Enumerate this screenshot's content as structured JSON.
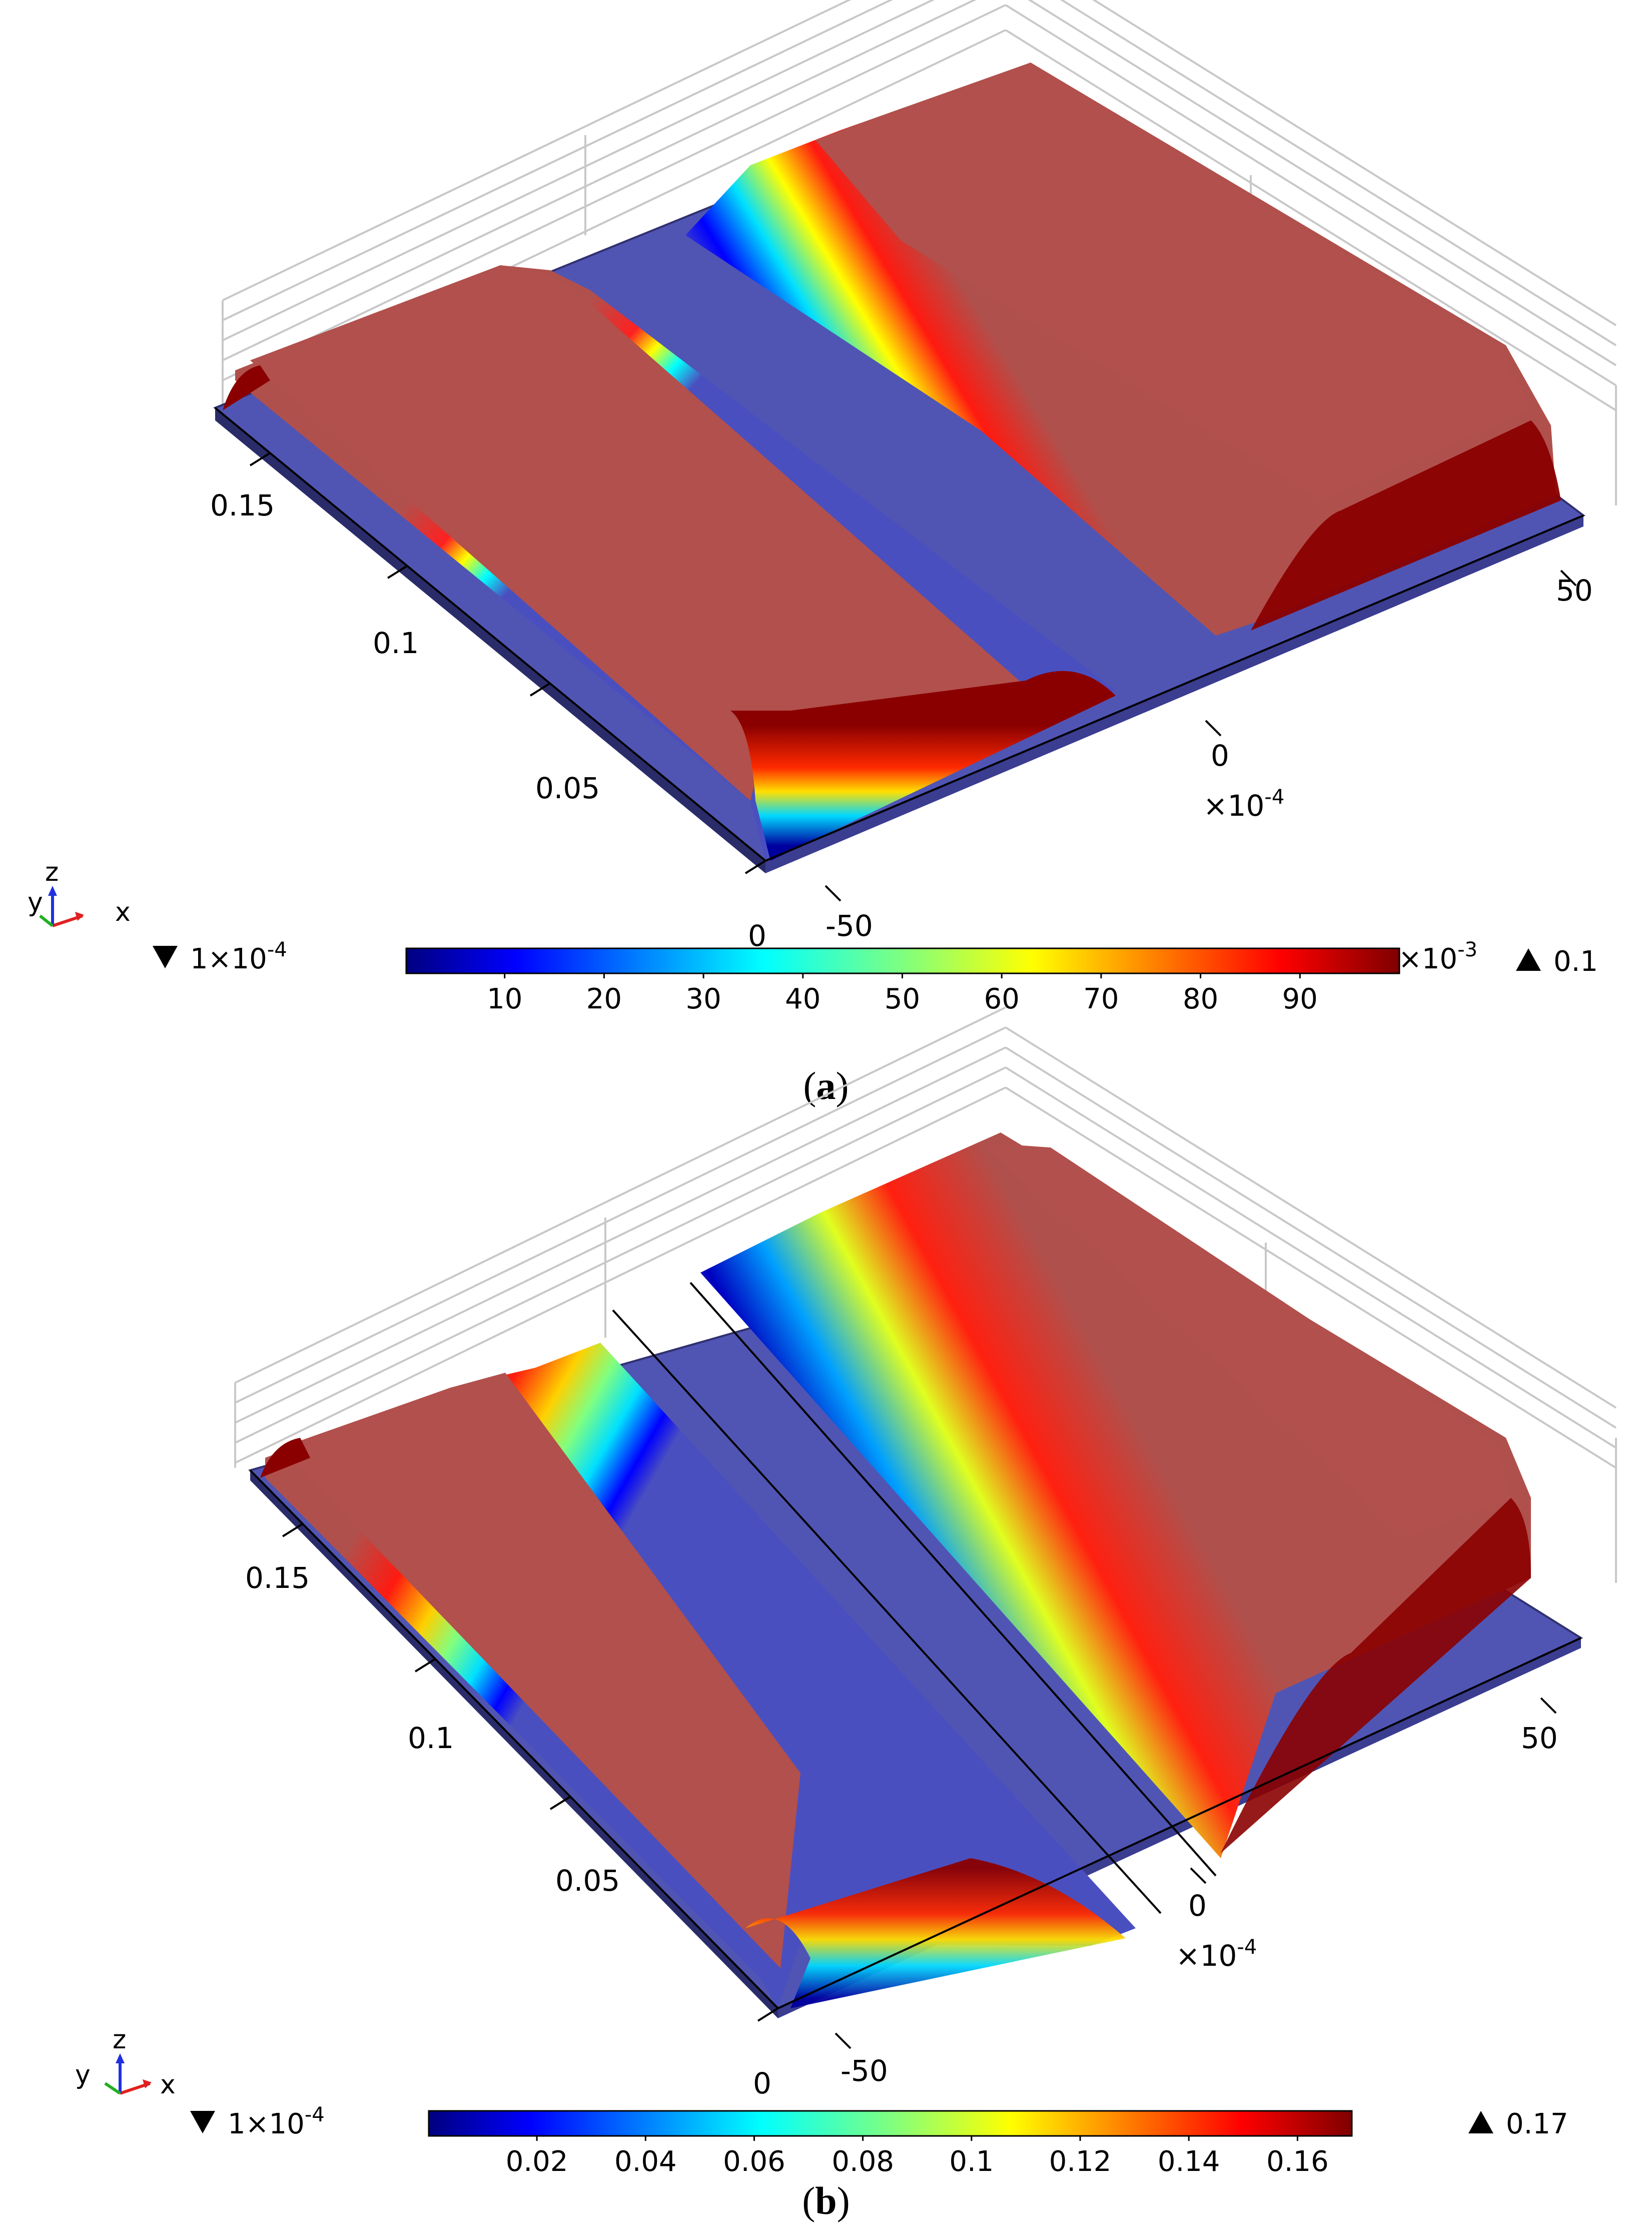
{
  "chart_data": [
    {
      "type": "surface",
      "panel_label": "a",
      "y_ticks": [
        "0.15",
        "0.1",
        "0.05",
        "0"
      ],
      "x_ticks": [
        "-50",
        "0",
        "50"
      ],
      "x_multiplier": "×10",
      "x_multiplier_exp": "-4",
      "colorbar": {
        "colormap": "jet",
        "ticks": [
          "10",
          "20",
          "30",
          "40",
          "50",
          "60",
          "70",
          "80",
          "90"
        ],
        "multiplier": "×10",
        "multiplier_exp": "-3",
        "range": [
          0.0001,
          0.1
        ]
      },
      "min_label": "1×10",
      "min_label_exp": "-4",
      "max_label": "0.1",
      "surface_profile": {
        "x_scaled": [
          -60,
          -45,
          -35,
          -20,
          -10,
          0,
          10,
          25,
          40,
          55,
          62
        ],
        "value": [
          0.0001,
          0.1,
          0.1,
          0.1,
          0.0001,
          0.0001,
          0.02,
          0.1,
          0.1,
          0.1,
          0.0001
        ]
      }
    },
    {
      "type": "surface",
      "panel_label": "b",
      "y_ticks": [
        "0.15",
        "0.1",
        "0.05",
        "0"
      ],
      "x_ticks": [
        "-50",
        "0",
        "50"
      ],
      "x_multiplier": "×10",
      "x_multiplier_exp": "-4",
      "colorbar": {
        "colormap": "jet",
        "ticks": [
          "0.02",
          "0.04",
          "0.06",
          "0.08",
          "0.1",
          "0.12",
          "0.14",
          "0.16"
        ],
        "range": [
          0.0001,
          0.17
        ]
      },
      "min_label": "1×10",
      "min_label_exp": "-4",
      "max_label": "0.17",
      "surface_profile": {
        "x_scaled": [
          -60,
          -50,
          -40,
          -25,
          -12,
          0,
          12,
          25,
          40,
          55,
          62
        ],
        "value": [
          0.0001,
          0.17,
          0.17,
          0.12,
          0.0001,
          0.0001,
          0.04,
          0.14,
          0.17,
          0.17,
          0.0001
        ]
      }
    }
  ],
  "axis_triad": {
    "x": "x",
    "y": "y",
    "z": "z"
  },
  "captions": [
    "a",
    "b"
  ]
}
